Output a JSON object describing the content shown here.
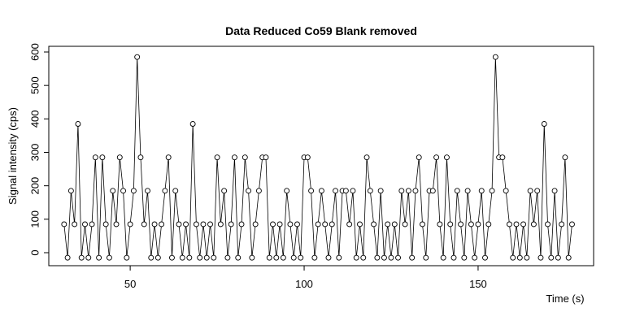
{
  "chart_data": {
    "type": "line",
    "title": "Data Reduced Co59 Blank removed",
    "x_label": "Time (s)",
    "y_label": "Signal intensity (cps)",
    "x": [
      31,
      32,
      33,
      34,
      35,
      36,
      37,
      38,
      39,
      40,
      41,
      42,
      43,
      44,
      45,
      46,
      47,
      48,
      49,
      50,
      51,
      52,
      53,
      54,
      55,
      56,
      57,
      58,
      59,
      60,
      61,
      62,
      63,
      64,
      65,
      66,
      67,
      68,
      69,
      70,
      71,
      72,
      73,
      74,
      75,
      76,
      77,
      78,
      79,
      80,
      81,
      82,
      83,
      84,
      85,
      86,
      87,
      88,
      89,
      90,
      91,
      92,
      93,
      94,
      95,
      96,
      97,
      98,
      99,
      100,
      101,
      102,
      103,
      104,
      105,
      106,
      107,
      108,
      109,
      110,
      111,
      112,
      113,
      114,
      115,
      116,
      117,
      118,
      119,
      120,
      121,
      122,
      123,
      124,
      125,
      126,
      127,
      128,
      129,
      130,
      131,
      132,
      133,
      134,
      135,
      136,
      137,
      138,
      139,
      140,
      141,
      142,
      143,
      144,
      145,
      146,
      147,
      148,
      149,
      150,
      151,
      152,
      153,
      154,
      155,
      156,
      157,
      158,
      159,
      160,
      161,
      162,
      163,
      164,
      165,
      166,
      167,
      168,
      169,
      170,
      171,
      172,
      173,
      174,
      175,
      176,
      177
    ],
    "values": [
      85,
      -15,
      185,
      85,
      385,
      -15,
      85,
      -15,
      85,
      285,
      -15,
      285,
      85,
      -15,
      185,
      85,
      285,
      185,
      -15,
      85,
      185,
      585,
      285,
      85,
      185,
      -15,
      85,
      -15,
      85,
      185,
      285,
      -15,
      185,
      85,
      -15,
      85,
      -15,
      385,
      85,
      -15,
      85,
      -15,
      85,
      -15,
      285,
      85,
      185,
      -15,
      85,
      285,
      -15,
      85,
      285,
      185,
      -15,
      85,
      185,
      285,
      285,
      -15,
      85,
      -15,
      85,
      -15,
      185,
      85,
      -15,
      85,
      -15,
      285,
      285,
      185,
      -15,
      85,
      185,
      85,
      -15,
      85,
      185,
      -15,
      185,
      185,
      85,
      185,
      -15,
      85,
      -15,
      285,
      185,
      85,
      -15,
      185,
      -15,
      85,
      -15,
      85,
      -15,
      185,
      85,
      185,
      -15,
      185,
      285,
      85,
      -15,
      185,
      185,
      285,
      85,
      -15,
      285,
      85,
      -15,
      185,
      85,
      -15,
      185,
      85,
      -15,
      85,
      185,
      -15,
      85,
      185,
      585,
      285,
      285,
      185,
      85,
      -15,
      85,
      -15,
      85,
      -15,
      185,
      85,
      185,
      -15,
      385,
      85,
      -15,
      185,
      -15,
      85,
      285,
      -15,
      85
    ],
    "color": "#000000",
    "xlim": [
      26.6,
      183.2
    ],
    "ylim": [
      -38.9,
      617
    ],
    "xticks": [
      50,
      100,
      150
    ],
    "yticks": [
      0,
      100,
      200,
      300,
      400,
      500,
      600
    ]
  }
}
